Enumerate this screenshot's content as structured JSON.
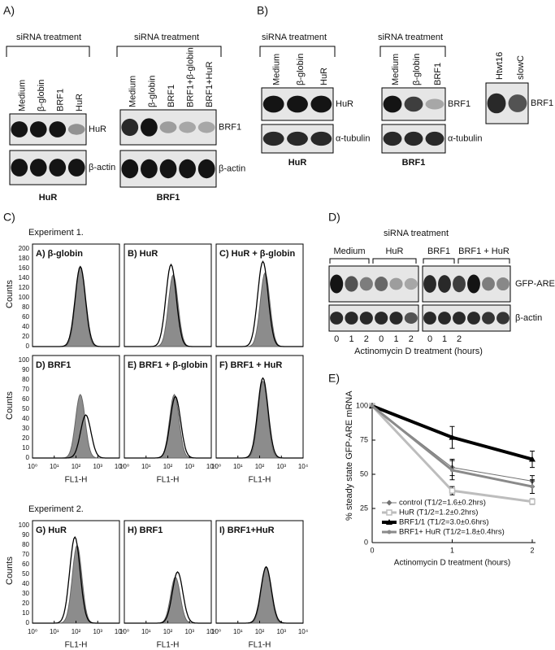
{
  "panel_a": {
    "label": "A)",
    "groups": [
      {
        "heading": "siRNA treatment",
        "lanes": [
          "Medium",
          "β-globin",
          "BRF1",
          "HuR"
        ],
        "blots": [
          "HuR",
          "β-actin"
        ],
        "caption": "HuR"
      },
      {
        "heading": "siRNA treatment",
        "lanes": [
          "Medium",
          "β-globin",
          "BRF1",
          "BRF1+β-globin",
          "BRF1+HuR"
        ],
        "blots": [
          "BRF1",
          "β-actin"
        ],
        "caption": "BRF1"
      }
    ]
  },
  "panel_b": {
    "label": "B)",
    "groups": [
      {
        "heading": "siRNA treatment",
        "lanes": [
          "Medium",
          "β-globin",
          "HuR"
        ],
        "blots": [
          "HuR",
          "α-tubulin"
        ],
        "caption": "HuR"
      },
      {
        "heading": "siRNA treatment",
        "lanes": [
          "Medium",
          "β-globin",
          "BRF1"
        ],
        "blots": [
          "BRF1",
          "α-tubulin"
        ],
        "caption": "BRF1"
      },
      {
        "lanes": [
          "Htwt16",
          "slowC"
        ],
        "blots": [
          "BRF1"
        ]
      }
    ]
  },
  "panel_c": {
    "label": "C)",
    "experiments": [
      {
        "title": "Experiment 1.",
        "rows": [
          {
            "plots": [
              "A) β-globin",
              "B) HuR",
              "C) HuR + β-globin"
            ],
            "y_label": "Counts",
            "yticks": [
              0,
              20,
              40,
              60,
              80,
              100,
              120,
              140,
              160,
              180,
              200
            ]
          },
          {
            "plots": [
              "D) BRF1",
              "E) BRF1 + β-globin",
              "F) BRF1 + HuR"
            ],
            "y_label": "Counts",
            "yticks": [
              0,
              10,
              20,
              30,
              40,
              50,
              60,
              70,
              80,
              90,
              100
            ],
            "xticks": [
              {
                "value": 0,
                "label": "10⁰"
              },
              {
                "value": 1,
                "label": "10¹"
              },
              {
                "value": 2,
                "label": "10²"
              },
              {
                "value": 3,
                "label": "10³"
              },
              {
                "value": 4,
                "label": "10⁴"
              }
            ],
            "x_label": "FL1-H"
          }
        ]
      },
      {
        "title": "Experiment 2.",
        "rows": [
          {
            "plots": [
              "G) HuR",
              "H) BRF1",
              "I) BRF1+HuR"
            ],
            "y_label": "Counts",
            "yticks": [
              0,
              10,
              20,
              30,
              40,
              50,
              60,
              70,
              80,
              90,
              100
            ],
            "xticks": [
              {
                "value": 0,
                "label": "10⁰"
              },
              {
                "value": 1,
                "label": "10¹"
              },
              {
                "value": 2,
                "label": "10²"
              },
              {
                "value": 3,
                "label": "10³"
              },
              {
                "value": 4,
                "label": "10⁴"
              }
            ],
            "x_label": "FL1-H"
          }
        ]
      }
    ]
  },
  "panel_d": {
    "label": "D)",
    "heading": "siRNA treatment",
    "groups": [
      "Medium",
      "HuR",
      "BRF1",
      "BRF1 + HuR"
    ],
    "blots": [
      "GFP-ARE",
      "β-actin"
    ],
    "lane_numbers": [
      0,
      1,
      2,
      0,
      1,
      2,
      0,
      1,
      2
    ],
    "x_label": "Actinomycin D treatment (hours)"
  },
  "panel_e": {
    "label": "E)"
  },
  "chart_data": {
    "type": "line",
    "x_label": "Actinomycin D treatment (hours)",
    "y_label": "% steady state GFP-ARE mRNA",
    "x": [
      0,
      1,
      2
    ],
    "xlim": [
      0,
      2
    ],
    "xticks": [
      0,
      1,
      2
    ],
    "ylim": [
      0,
      100
    ],
    "yticks": [
      0,
      25,
      50,
      75,
      100
    ],
    "series": [
      {
        "name": "control (T1/2=1.6±0.2hrs)",
        "color": "#707070",
        "values": [
          100,
          55,
          45
        ],
        "errors": [
          0,
          6,
          4
        ]
      },
      {
        "name": "HuR (T1/2=1.2±0.2hrs)",
        "color": "#bdbdbd",
        "values": [
          100,
          38,
          30
        ],
        "errors": [
          0,
          3,
          2
        ]
      },
      {
        "name": "BRF1/1 (T1/2=3.0±0.6hrs)",
        "color": "#000000",
        "values": [
          100,
          77,
          61
        ],
        "errors": [
          0,
          8,
          6
        ]
      },
      {
        "name": "BRF1+ HuR (T1/2=1.8±0.4hrs)",
        "color": "#8a8a8a",
        "values": [
          100,
          53,
          41
        ],
        "errors": [
          0,
          7,
          5
        ]
      }
    ]
  }
}
